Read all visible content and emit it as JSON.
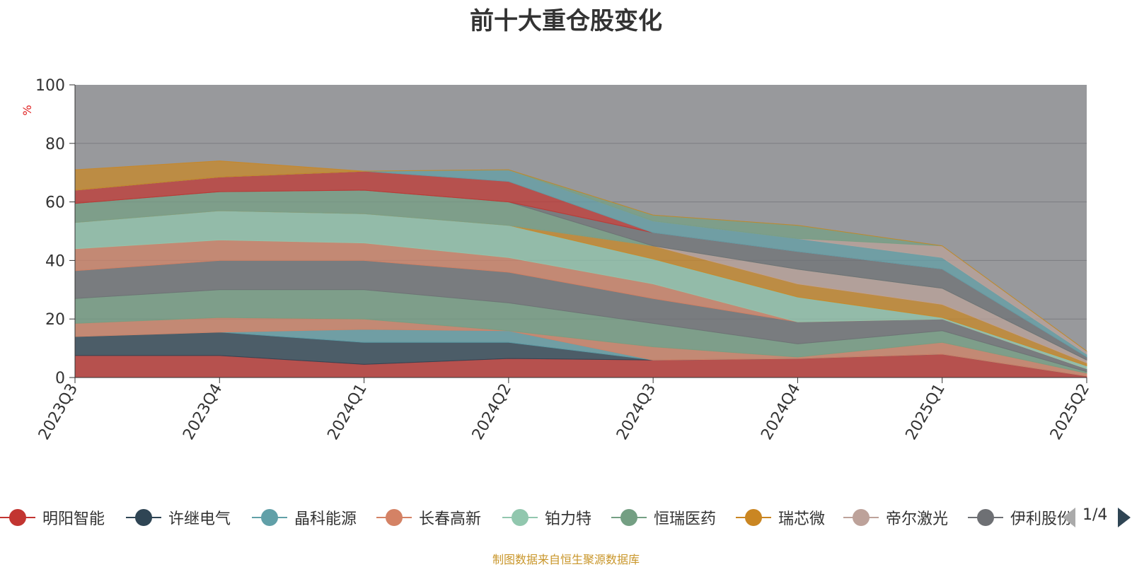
{
  "title": "前十大重仓股变化",
  "source_note": "制图数据来自恒生聚源数据库",
  "legend_page": "1/4",
  "chart_data": {
    "type": "area",
    "title": "前十大重仓股变化",
    "xlabel": "",
    "ylabel": "%",
    "ylim": [
      0,
      100
    ],
    "yticks": [
      0,
      20,
      40,
      60,
      80,
      100
    ],
    "grid": true,
    "legend_position": "bottom",
    "categories": [
      "2023Q3",
      "2023Q4",
      "2024Q1",
      "2024Q2",
      "2024Q3",
      "2024Q4",
      "2025Q1",
      "2025Q2"
    ],
    "series": [
      {
        "name": "明阳智能",
        "color": "#c23531",
        "values": [
          7.5,
          7.5,
          4.5,
          6.5,
          6.0,
          6.5,
          8.0,
          0.5
        ]
      },
      {
        "name": "许继电气",
        "color": "#2f4554",
        "values": [
          6.5,
          8.0,
          7.5,
          5.5,
          0,
          0,
          0,
          0
        ]
      },
      {
        "name": "晶科能源",
        "color": "#61a0a8",
        "values": [
          0,
          0,
          4.5,
          4.0,
          0,
          0,
          0,
          0
        ]
      },
      {
        "name": "长春高新",
        "color": "#d48265",
        "values": [
          4.5,
          5.0,
          3.5,
          0,
          4.5,
          0.5,
          4.0,
          1.0
        ]
      },
      {
        "name": "恒瑞医药",
        "color": "#749f83",
        "values": [
          8.5,
          9.5,
          10.0,
          9.5,
          8.0,
          4.5,
          4.0,
          0.5
        ]
      },
      {
        "name": "伊利股份",
        "color": "#6e7074",
        "values": [
          9.5,
          10.0,
          10.0,
          10.5,
          8.5,
          7.5,
          4.0,
          1.0
        ]
      },
      {
        "name": "长春高新(2)",
        "color": "#d48265",
        "values": [
          7.5,
          7.0,
          6.0,
          5.0,
          5.0,
          0,
          0,
          0
        ]
      },
      {
        "name": "铂力特",
        "color": "#91c7ae",
        "values": [
          9.0,
          10.0,
          10.0,
          11.0,
          8.5,
          8.5,
          0.5,
          1.0
        ]
      },
      {
        "name": "瑞芯微",
        "color": "#ca8622",
        "values": [
          0,
          0,
          0,
          0,
          4.5,
          4.5,
          4.5,
          1.0
        ]
      },
      {
        "name": "帝尔激光",
        "color": "#bda29a",
        "values": [
          0,
          0,
          0,
          0,
          0,
          5.0,
          5.5,
          1.0
        ]
      },
      {
        "name": "恒瑞医药(2)",
        "color": "#749f83",
        "values": [
          6.5,
          6.5,
          8.0,
          8.0,
          0,
          0,
          0,
          0
        ]
      },
      {
        "name": "伊利股份(2)",
        "color": "#6e7074",
        "values": [
          0,
          0,
          0,
          0,
          4.5,
          6.0,
          6.5,
          1.0
        ]
      },
      {
        "name": "明阳智能(2)",
        "color": "#c23531",
        "values": [
          4.5,
          5.0,
          6.5,
          7.0,
          0,
          0,
          0,
          0
        ]
      },
      {
        "name": "晶科能源(2)",
        "color": "#61a0a8",
        "values": [
          0,
          0,
          0,
          4.0,
          4.0,
          4.5,
          4.0,
          1.0
        ]
      },
      {
        "name": "帝尔激光(2)",
        "color": "#bda29a",
        "values": [
          0,
          0,
          0,
          0,
          0,
          0,
          4.0,
          1.0
        ]
      },
      {
        "name": "恒瑞医药(3)",
        "color": "#749f83",
        "values": [
          0,
          0,
          0,
          0,
          2.0,
          4.5,
          0,
          0
        ]
      },
      {
        "name": "瑞芯微(2)",
        "color": "#ca8622",
        "values": [
          7.0,
          5.5,
          0,
          0,
          0,
          0,
          0,
          0
        ]
      }
    ]
  },
  "legend_items": [
    {
      "label": "明阳智能",
      "color": "#c23531"
    },
    {
      "label": "许继电气",
      "color": "#2f4554"
    },
    {
      "label": "晶科能源",
      "color": "#61a0a8"
    },
    {
      "label": "长春高新",
      "color": "#d48265"
    },
    {
      "label": "铂力特",
      "color": "#91c7ae"
    },
    {
      "label": "恒瑞医药",
      "color": "#749f83"
    },
    {
      "label": "瑞芯微",
      "color": "#ca8622"
    },
    {
      "label": "帝尔激光",
      "color": "#bda29a"
    },
    {
      "label": "伊利股份",
      "color": "#6e7074"
    }
  ]
}
